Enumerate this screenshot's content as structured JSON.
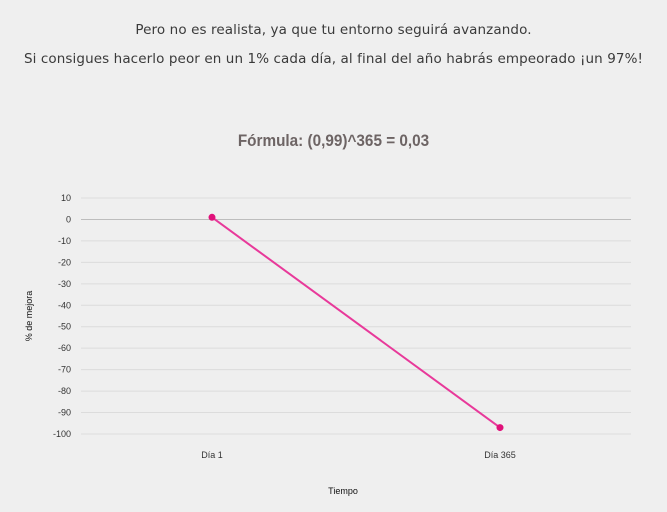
{
  "intro": {
    "line1": "Pero no es realista, ya que tu entorno seguirá avanzando.",
    "line2": "Si consigues hacerlo peor en un 1% cada día, al final del año habrás empeorado ¡un 97%!"
  },
  "formula": "Fórmula: (0,99)^365 = 0,03",
  "colors": {
    "series": "#e8399a",
    "point": "#e0117a",
    "grid": "#dcdcdc",
    "background": "#efefef"
  },
  "chart_data": {
    "type": "line",
    "categories": [
      "Día 1",
      "Día 365"
    ],
    "series": [
      {
        "values": [
          1,
          -97
        ]
      }
    ],
    "xlabel": "Tiempo",
    "ylabel": "% de mejora",
    "ylim": [
      -100,
      10
    ],
    "yticks": [
      "10",
      "0",
      "-10",
      "-20",
      "-30",
      "-40",
      "-50",
      "-60",
      "-70",
      "-80",
      "-90",
      "-100"
    ],
    "grid": true
  }
}
